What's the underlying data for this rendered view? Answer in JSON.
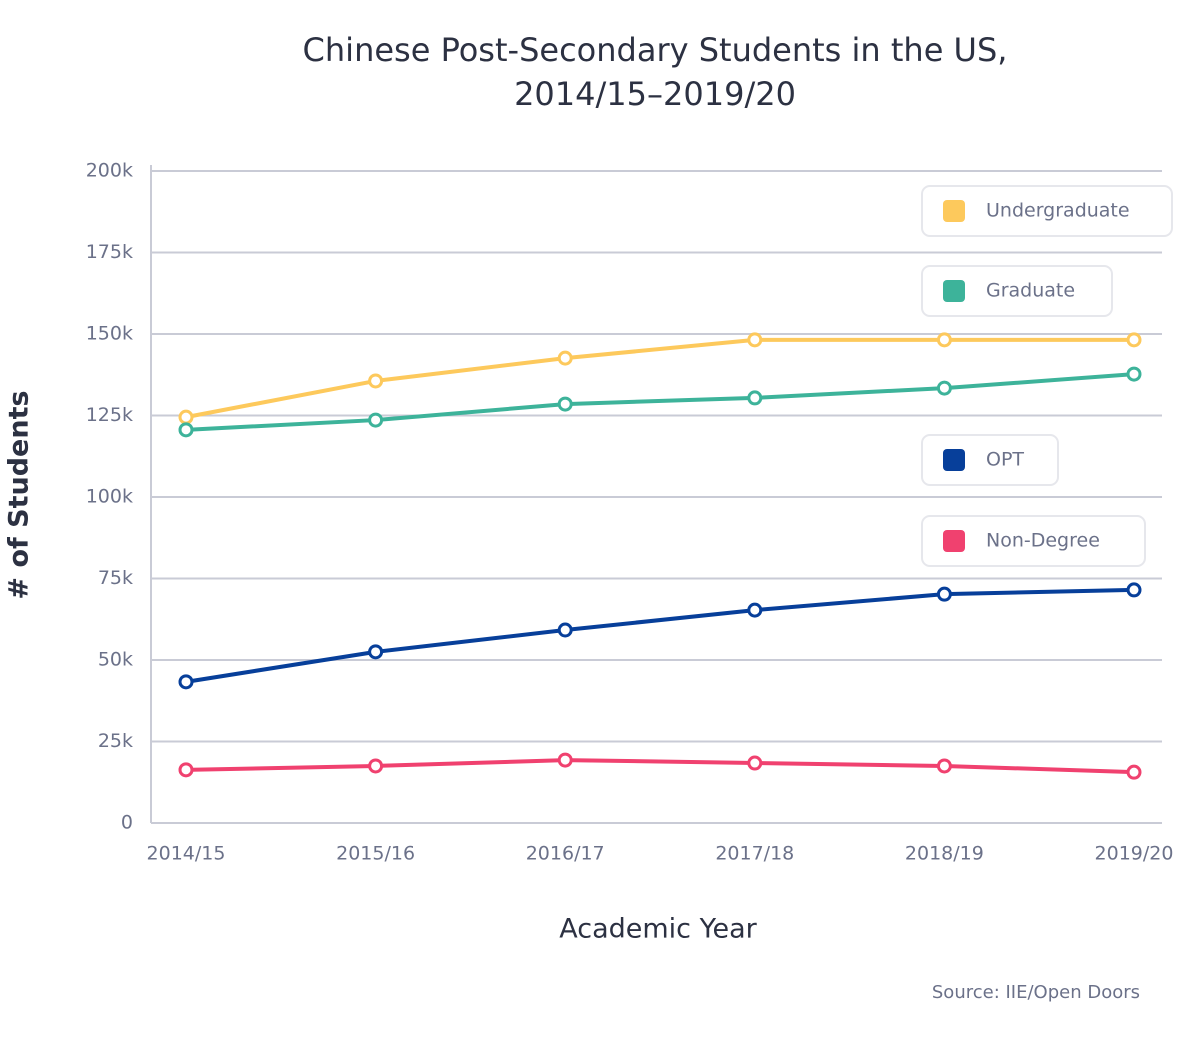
{
  "chart_data": {
    "type": "line",
    "title": [
      "Chinese Post-Secondary Students in the US,",
      "2014/15–2019/20"
    ],
    "x_label": "Academic Year",
    "y_label": "# of Students",
    "source": "Source: IIE/Open Doors",
    "categories": [
      "2014/15",
      "2015/16",
      "2016/17",
      "2017/18",
      "2018/19",
      "2019/20"
    ],
    "series": [
      {
        "name": "Undergraduate",
        "color": "#fdc95c",
        "values": [
          124500,
          135600,
          142600,
          148200,
          148200,
          148200
        ]
      },
      {
        "name": "Graduate",
        "color": "#3db39a",
        "values": [
          120600,
          123600,
          128500,
          130400,
          133400,
          137700
        ]
      },
      {
        "name": "OPT",
        "color": "#073f9a",
        "values": [
          43300,
          52500,
          59200,
          65300,
          70200,
          71500
        ]
      },
      {
        "name": "Non-Degree",
        "color": "#f0416f",
        "values": [
          16300,
          17500,
          19300,
          18400,
          17500,
          15600
        ]
      }
    ],
    "ylim": [
      0,
      200000
    ],
    "yticks": [
      0,
      {
        "value": 25000,
        "label": "25k"
      },
      {
        "value": 50000,
        "label": "50k"
      },
      {
        "value": 75000,
        "label": "75k"
      },
      {
        "value": 100000,
        "label": "100k"
      },
      {
        "value": 125000,
        "label": "125k"
      },
      {
        "value": 150000,
        "label": "150k"
      },
      {
        "value": 175000,
        "label": "175k"
      },
      {
        "value": 200000,
        "label": "200k"
      }
    ],
    "grid": true,
    "legend": "right"
  }
}
